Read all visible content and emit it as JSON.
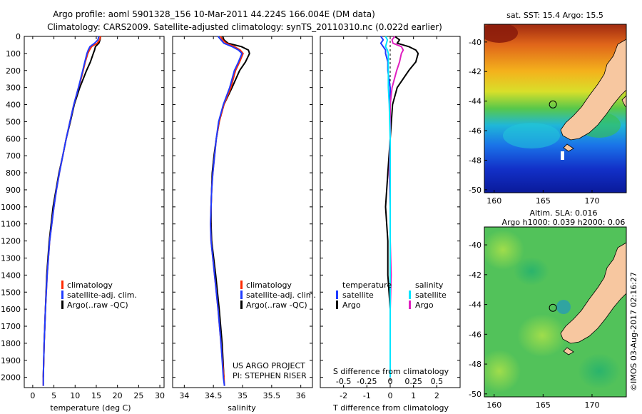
{
  "title_line1": "Argo profile: aoml 5901328_156 10-Mar-2011 44.224S 166.004E (DM data)",
  "title_line2": "Climatology: CARS2009. Satellite-adjusted climatology: synTS_20110310.nc (0.022d earlier)",
  "project_line1": "US ARGO PROJECT",
  "project_line2": "PI: STEPHEN RISER",
  "credit": "©IMOS 03-Aug-2017 02:16:27",
  "colors": {
    "climatology": "#ff2a00",
    "satellite": "#1f3bff",
    "argo": "#000000",
    "satellite_s": "#00e5ff",
    "argo_s": "#e020c0",
    "land": "#f7c7a0",
    "panel_border": "#000000"
  },
  "chart_data": [
    {
      "type": "line",
      "panel": "temperature",
      "xlabel": "temperature (deg C)",
      "xlim": [
        -2,
        31
      ],
      "xticks": [
        0,
        5,
        10,
        15,
        20,
        25,
        30
      ],
      "ylim": [
        0,
        2060
      ],
      "yticks": [
        0,
        100,
        200,
        300,
        400,
        500,
        600,
        700,
        800,
        900,
        1000,
        1100,
        1200,
        1300,
        1400,
        1500,
        1600,
        1700,
        1800,
        1900,
        2000
      ],
      "legend": [
        "climatology",
        "satellite-adj. clim.",
        "Argo(..raw -QC)"
      ],
      "depth": [
        0,
        20,
        40,
        60,
        80,
        100,
        150,
        200,
        250,
        300,
        400,
        500,
        600,
        700,
        800,
        900,
        1000,
        1200,
        1400,
        1600,
        1800,
        2000,
        2050
      ],
      "series": [
        {
          "name": "climatology",
          "values": [
            16.0,
            15.8,
            15.2,
            13.9,
            13.4,
            13.0,
            12.4,
            11.9,
            11.4,
            10.8,
            9.7,
            8.8,
            7.9,
            7.1,
            6.3,
            5.6,
            5.0,
            4.0,
            3.4,
            3.0,
            2.7,
            2.5,
            2.5
          ]
        },
        {
          "name": "satellite-adj. clim.",
          "values": [
            15.6,
            15.4,
            14.6,
            13.5,
            13.1,
            12.8,
            12.3,
            11.8,
            11.3,
            10.8,
            9.7,
            8.8,
            7.9,
            7.1,
            6.3,
            5.6,
            5.0,
            4.0,
            3.4,
            3.0,
            2.7,
            2.5,
            2.5
          ]
        },
        {
          "name": "Argo(..raw -QC)",
          "values": [
            16.0,
            15.9,
            15.6,
            14.8,
            14.6,
            14.3,
            13.6,
            12.7,
            11.9,
            11.1,
            9.8,
            8.9,
            7.9,
            7.1,
            6.2,
            5.5,
            4.8,
            3.9,
            3.3,
            3.0,
            2.7,
            2.5,
            null
          ]
        }
      ]
    },
    {
      "type": "line",
      "panel": "salinity",
      "xlabel": "salinity",
      "xlim": [
        33.8,
        36.2
      ],
      "xticks": [
        "34",
        "34.5",
        "35",
        "35.5",
        "36"
      ],
      "legend": [
        "climatology",
        "satellite-adj. clim.",
        "Argo(..raw -QC)"
      ],
      "depth": [
        0,
        20,
        40,
        60,
        80,
        100,
        150,
        200,
        300,
        400,
        500,
        600,
        700,
        800,
        900,
        1000,
        1100,
        1200,
        1400,
        1600,
        1800,
        2000,
        2050
      ],
      "series": [
        {
          "name": "climatology",
          "values": [
            34.62,
            34.66,
            34.72,
            34.86,
            34.96,
            35.01,
            34.95,
            34.88,
            34.8,
            34.68,
            34.6,
            34.55,
            34.52,
            34.49,
            34.47,
            34.46,
            34.45,
            34.46,
            34.52,
            34.58,
            34.63,
            34.68,
            34.69
          ]
        },
        {
          "name": "satellite-adj. clim.",
          "values": [
            34.58,
            34.63,
            34.68,
            34.82,
            34.93,
            34.99,
            34.93,
            34.86,
            34.78,
            34.67,
            34.59,
            34.55,
            34.52,
            34.49,
            34.47,
            34.46,
            34.45,
            34.46,
            34.52,
            34.58,
            34.63,
            34.67,
            34.69
          ]
        },
        {
          "name": "Argo(..raw -QC)",
          "values": [
            34.66,
            34.68,
            34.75,
            34.98,
            35.1,
            35.12,
            35.05,
            34.95,
            34.82,
            34.68,
            34.6,
            34.55,
            34.51,
            34.48,
            34.47,
            34.46,
            34.46,
            34.47,
            34.54,
            34.6,
            34.65,
            34.68,
            null
          ]
        }
      ]
    },
    {
      "type": "line",
      "panel": "difference",
      "xlabel": "T difference from climatology",
      "top_xlabel": "S difference from climatology",
      "xlim_T": [
        -3,
        3
      ],
      "xticks_T": [
        "-2",
        "-1",
        "0",
        "1",
        "2"
      ],
      "xlim_S": [
        -0.75,
        0.75
      ],
      "xticks_S": [
        "-0.5",
        "-0.25",
        "0",
        "0.25",
        "0.5"
      ],
      "legend_T_title": "temperature",
      "legend_S_title": "salinity",
      "legend": [
        "satellite",
        "Argo",
        "satellite",
        "Argo"
      ],
      "depth": [
        0,
        20,
        40,
        60,
        80,
        100,
        150,
        200,
        300,
        400,
        600,
        800,
        1000,
        1200,
        1400,
        1600,
        1800,
        2000
      ],
      "series": [
        {
          "name": "satellite",
          "values": [
            -0.4,
            -0.3,
            -0.4,
            -0.3,
            -0.2,
            -0.2,
            -0.1,
            -0.1,
            0.0,
            0.0,
            0.0,
            0.0,
            0.0,
            0.0,
            0.0,
            0.0,
            0.0,
            0.0
          ]
        },
        {
          "name": "Argo",
          "values": [
            0.2,
            0.4,
            0.3,
            0.8,
            1.1,
            1.2,
            1.1,
            0.8,
            0.3,
            0.1,
            0.0,
            -0.1,
            -0.2,
            -0.1,
            -0.1,
            0.0,
            0.0,
            0.0
          ]
        },
        {
          "name": "satellite",
          "values": [
            -0.05,
            -0.03,
            -0.04,
            -0.05,
            -0.03,
            -0.02,
            -0.02,
            -0.02,
            -0.02,
            -0.01,
            0.0,
            0.0,
            0.0,
            0.0,
            0.0,
            0.0,
            0.0,
            0.0
          ]
        },
        {
          "name": "Argo",
          "values": [
            0.05,
            0.02,
            0.03,
            0.12,
            0.14,
            0.12,
            0.1,
            0.07,
            0.02,
            0.0,
            0.0,
            -0.01,
            0.0,
            0.0,
            0.01,
            0.0,
            0.0,
            0.0
          ]
        }
      ]
    },
    {
      "type": "heatmap",
      "panel": "sst-map",
      "title": "sat. SST: 15.4  Argo: 15.5",
      "xlim": [
        159,
        173.5
      ],
      "ylim": [
        -50.2,
        -38.8
      ],
      "xticks": [
        "160",
        "165",
        "170"
      ],
      "yticks": [
        "-40",
        "-42",
        "-44",
        "-46",
        "-48",
        "-50"
      ],
      "argo_position": [
        166.004,
        -44.224
      ]
    },
    {
      "type": "heatmap",
      "panel": "sla-map",
      "title_line1": "Altim. SLA: 0.016",
      "title_line2": "Argo h1000: 0.039 h2000: 0.06",
      "xlim": [
        159,
        173.5
      ],
      "ylim": [
        -50.2,
        -38.8
      ],
      "xticks": [
        "160",
        "165",
        "170"
      ],
      "yticks": [
        "-40",
        "-42",
        "-44",
        "-46",
        "-48",
        "-50"
      ],
      "argo_position": [
        166.004,
        -44.224
      ]
    }
  ]
}
